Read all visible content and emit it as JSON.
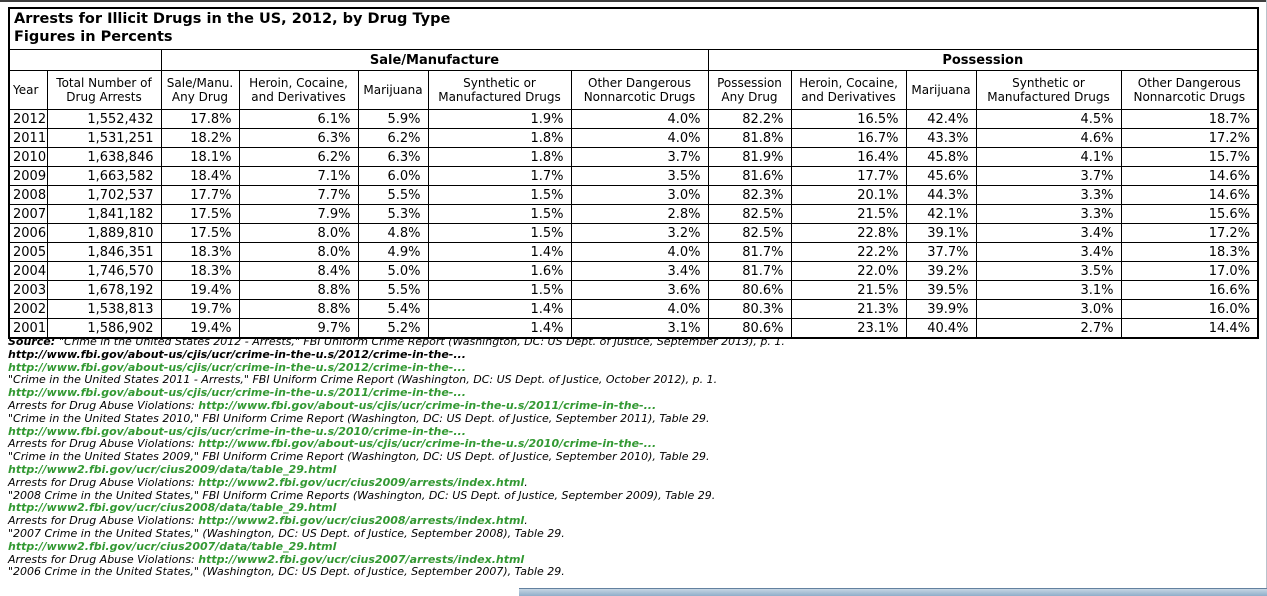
{
  "title": {
    "line1": "Arrests for Illicit Drugs in the US, 2012, by Drug Type",
    "line2": "Figures in Percents"
  },
  "table": {
    "group_headers": {
      "sale": "Sale/Manufacture",
      "possession": "Possession"
    },
    "columns": [
      "Year",
      "Total Number of Drug Arrests",
      "Sale/Manu. Any Drug",
      "Heroin, Cocaine, and Derivatives",
      "Marijuana",
      "Synthetic or Manufactured Drugs",
      "Other Dangerous Nonnarcotic Drugs",
      "Possession Any Drug",
      "Heroin, Cocaine, and Derivatives",
      "Marijuana",
      "Synthetic or Manufactured Drugs",
      "Other Dangerous Nonnarcotic Drugs"
    ],
    "rows": [
      [
        "2012",
        "1,552,432",
        "17.8%",
        "6.1%",
        "5.9%",
        "1.9%",
        "4.0%",
        "82.2%",
        "16.5%",
        "42.4%",
        "4.5%",
        "18.7%"
      ],
      [
        "2011",
        "1,531,251",
        "18.2%",
        "6.3%",
        "6.2%",
        "1.8%",
        "4.0%",
        "81.8%",
        "16.7%",
        "43.3%",
        "4.6%",
        "17.2%"
      ],
      [
        "2010",
        "1,638,846",
        "18.1%",
        "6.2%",
        "6.3%",
        "1.8%",
        "3.7%",
        "81.9%",
        "16.4%",
        "45.8%",
        "4.1%",
        "15.7%"
      ],
      [
        "2009",
        "1,663,582",
        "18.4%",
        "7.1%",
        "6.0%",
        "1.7%",
        "3.5%",
        "81.6%",
        "17.7%",
        "45.6%",
        "3.7%",
        "14.6%"
      ],
      [
        "2008",
        "1,702,537",
        "17.7%",
        "7.7%",
        "5.5%",
        "1.5%",
        "3.0%",
        "82.3%",
        "20.1%",
        "44.3%",
        "3.3%",
        "14.6%"
      ],
      [
        "2007",
        "1,841,182",
        "17.5%",
        "7.9%",
        "5.3%",
        "1.5%",
        "2.8%",
        "82.5%",
        "21.5%",
        "42.1%",
        "3.3%",
        "15.6%"
      ],
      [
        "2006",
        "1,889,810",
        "17.5%",
        "8.0%",
        "4.8%",
        "1.5%",
        "3.2%",
        "82.5%",
        "22.8%",
        "39.1%",
        "3.4%",
        "17.2%"
      ],
      [
        "2005",
        "1,846,351",
        "18.3%",
        "8.0%",
        "4.9%",
        "1.4%",
        "4.0%",
        "81.7%",
        "22.2%",
        "37.7%",
        "3.4%",
        "18.3%"
      ],
      [
        "2004",
        "1,746,570",
        "18.3%",
        "8.4%",
        "5.0%",
        "1.6%",
        "3.4%",
        "81.7%",
        "22.0%",
        "39.2%",
        "3.5%",
        "17.0%"
      ],
      [
        "2003",
        "1,678,192",
        "19.4%",
        "8.8%",
        "5.5%",
        "1.5%",
        "3.6%",
        "80.6%",
        "21.5%",
        "39.5%",
        "3.1%",
        "16.6%"
      ],
      [
        "2002",
        "1,538,813",
        "19.7%",
        "8.8%",
        "5.4%",
        "1.4%",
        "4.0%",
        "80.3%",
        "21.3%",
        "39.9%",
        "3.0%",
        "16.0%"
      ],
      [
        "2001",
        "1,586,902",
        "19.4%",
        "9.7%",
        "5.2%",
        "1.4%",
        "3.1%",
        "80.6%",
        "23.1%",
        "40.4%",
        "2.7%",
        "14.4%"
      ]
    ]
  },
  "sources": {
    "lines": [
      [
        {
          "t": "Source: ",
          "s": "label"
        },
        {
          "t": "\"Crime in the United States 2012 - Arrests,\" FBI Uniform Crime Report (Washington, DC: US Dept. of Justice, September 2013), p. 1.",
          "s": "cite"
        }
      ],
      [
        {
          "t": "http://www.fbi.gov/about-us/cjis/ucr/crime-in-the-u.s/2012/crime-in-the-...",
          "s": "url-black"
        }
      ],
      [
        {
          "t": "http://www.fbi.gov/about-us/cjis/ucr/crime-in-the-u.s/2012/crime-in-the-...",
          "s": "url"
        }
      ],
      [
        {
          "t": "\"Crime in the United States 2011 - Arrests,\" FBI Uniform Crime Report (Washington, DC: US Dept. of Justice, October 2012), p. 1.",
          "s": "cite"
        }
      ],
      [
        {
          "t": "http://www.fbi.gov/about-us/cjis/ucr/crime-in-the-u.s/2011/crime-in-the-...",
          "s": "url"
        }
      ],
      [
        {
          "t": "Arrests for Drug Abuse Violations: ",
          "s": "cite"
        },
        {
          "t": "http://www.fbi.gov/about-us/cjis/ucr/crime-in-the-u.s/2011/crime-in-the-...",
          "s": "url"
        }
      ],
      [
        {
          "t": "\"Crime in the United States 2010,\" FBI Uniform Crime Report (Washington, DC: US Dept. of Justice, September 2011), Table 29.",
          "s": "cite"
        }
      ],
      [
        {
          "t": "http://www.fbi.gov/about-us/cjis/ucr/crime-in-the-u.s/2010/crime-in-the-...",
          "s": "url"
        }
      ],
      [
        {
          "t": "Arrests for Drug Abuse Violations: ",
          "s": "cite"
        },
        {
          "t": "http://www.fbi.gov/about-us/cjis/ucr/crime-in-the-u.s/2010/crime-in-the-...",
          "s": "url"
        }
      ],
      [
        {
          "t": "\"Crime in the United States 2009,\" FBI Uniform Crime Report (Washington, DC: US Dept. of Justice, September 2010), Table 29.",
          "s": "cite"
        }
      ],
      [
        {
          "t": "http://www2.fbi.gov/ucr/cius2009/data/table_29.html",
          "s": "url"
        }
      ],
      [
        {
          "t": "Arrests for Drug Abuse Violations: ",
          "s": "cite"
        },
        {
          "t": "http://www2.fbi.gov/ucr/cius2009/arrests/index.html",
          "s": "url"
        },
        {
          "t": ".",
          "s": "cite"
        }
      ],
      [
        {
          "t": "\"2008 Crime in the United States,\" FBI Uniform Crime Reports (Washington, DC: US Dept. of Justice, September 2009), Table 29.",
          "s": "cite"
        }
      ],
      [
        {
          "t": "http://www2.fbi.gov/ucr/cius2008/data/table_29.html",
          "s": "url"
        }
      ],
      [
        {
          "t": "Arrests for Drug Abuse Violations: ",
          "s": "cite"
        },
        {
          "t": "http://www2.fbi.gov/ucr/cius2008/arrests/index.html",
          "s": "url"
        },
        {
          "t": ".",
          "s": "cite"
        }
      ],
      [
        {
          "t": "\"2007 Crime in the United States,\" (Washington, DC: US Dept. of Justice, September 2008), Table 29.",
          "s": "cite"
        }
      ],
      [
        {
          "t": "http://www2.fbi.gov/ucr/cius2007/data/table_29.html",
          "s": "url"
        }
      ],
      [
        {
          "t": "Arrests for Drug Abuse Violations: ",
          "s": "cite"
        },
        {
          "t": "http://www2.fbi.gov/ucr/cius2007/arrests/index.html",
          "s": "url"
        }
      ],
      [
        {
          "t": "\"2006 Crime in the United States,\" (Washington, DC: US Dept. of Justice, September 2007), Table 29.",
          "s": "cite"
        }
      ]
    ]
  }
}
